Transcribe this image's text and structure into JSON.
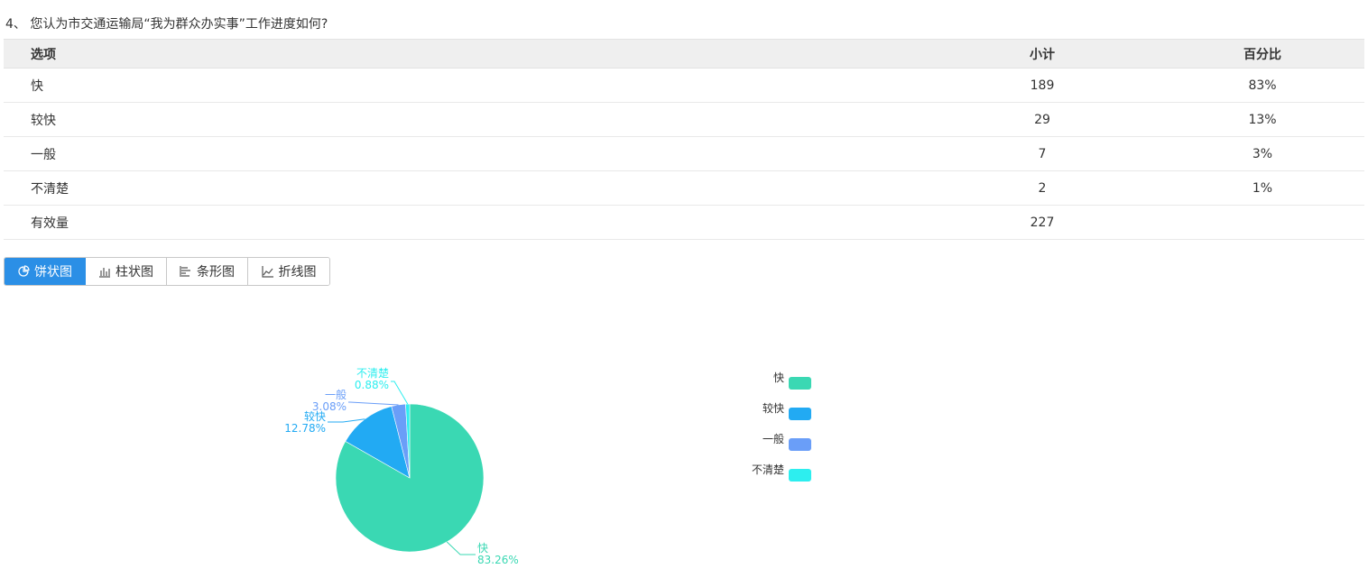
{
  "question": {
    "title": "4、 您认为市交通运输局“我为群众办实事”工作进度如何?"
  },
  "table": {
    "headers": [
      "选项",
      "小计",
      "百分比"
    ],
    "rows": [
      {
        "option": "快",
        "count": "189",
        "percent": "83%"
      },
      {
        "option": "较快",
        "count": "29",
        "percent": "13%"
      },
      {
        "option": "一般",
        "count": "7",
        "percent": "3%"
      },
      {
        "option": "不清楚",
        "count": "2",
        "percent": "1%"
      },
      {
        "option": "有效量",
        "count": "227",
        "percent": ""
      }
    ]
  },
  "chart_tabs": [
    {
      "label": "饼状图",
      "icon": "pie-chart-icon",
      "active": true
    },
    {
      "label": "柱状图",
      "icon": "bar-chart-icon",
      "active": false
    },
    {
      "label": "条形图",
      "icon": "horizontal-bar-icon",
      "active": false
    },
    {
      "label": "折线图",
      "icon": "line-chart-icon",
      "active": false
    }
  ],
  "chart_data": {
    "type": "pie",
    "categories": [
      "快",
      "较快",
      "一般",
      "不清楚"
    ],
    "values": [
      189,
      29,
      7,
      2
    ],
    "percent_labels": [
      "83.26%",
      "12.78%",
      "3.08%",
      "0.88%"
    ],
    "colors": [
      "#3ad8b3",
      "#22aaf3",
      "#6a9ef8",
      "#2deeef"
    ],
    "legend_position": "right"
  }
}
